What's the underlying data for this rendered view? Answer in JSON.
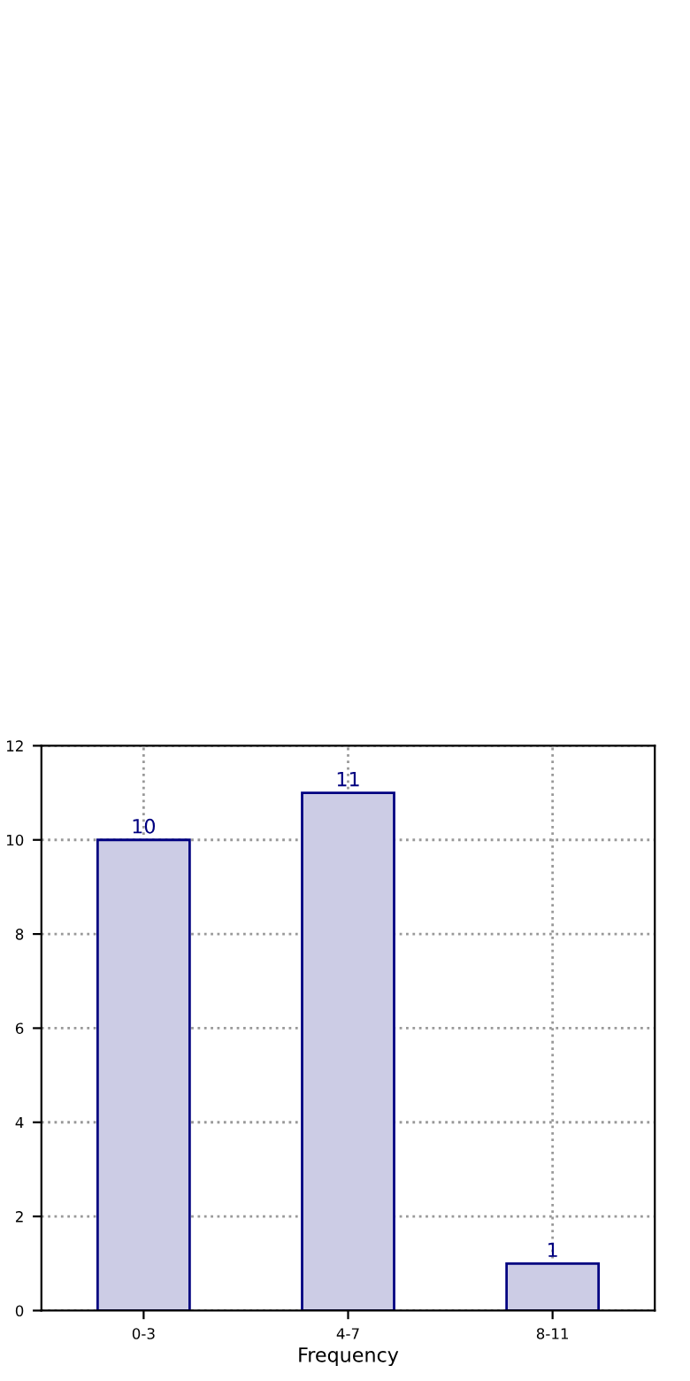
{
  "chart_data": {
    "type": "bar",
    "xlabel": "Frequency",
    "categories": [
      "0-3",
      "4-7",
      "8-11"
    ],
    "series": [
      {
        "color": "#ccccE5",
        "values": [
          10,
          11,
          1
        ]
      }
    ],
    "ylim": [
      0,
      12
    ],
    "yticks": [
      0,
      2,
      4,
      6,
      8,
      10,
      12
    ],
    "grid": true,
    "data_labels": true
  }
}
